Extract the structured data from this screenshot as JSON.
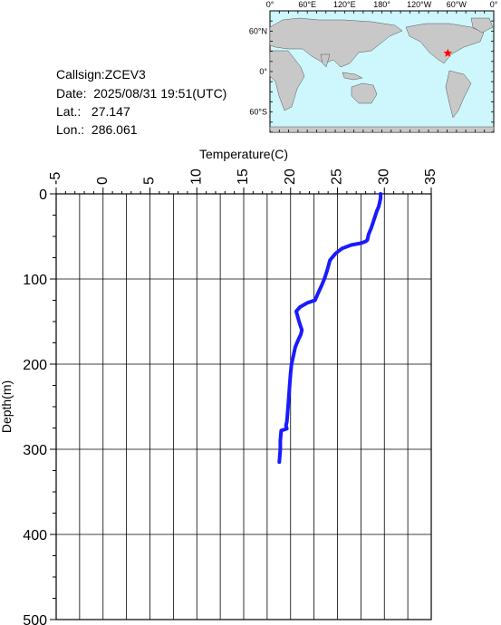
{
  "info": {
    "callsign_label": "Callsign:",
    "callsign": "ZCEV3",
    "date_label": "Date:",
    "date": "2025/08/31 19:51(UTC)",
    "lat_label": "Lat.:",
    "lat": "27.147",
    "lon_label": "Lon.:",
    "lon": "286.061"
  },
  "map": {
    "lon_labels": [
      "0°",
      "60°E",
      "120°E",
      "180°",
      "120°W",
      "60°W",
      "0°"
    ],
    "lat_labels": [
      "60°N",
      "0°",
      "60°S"
    ],
    "ocean_color": "#cdf7fd",
    "land_color": "#c8c8c8",
    "marker_color": "#ff0000",
    "marker": "star-icon"
  },
  "chart_data": {
    "type": "line",
    "xlabel": "Temperature(C)",
    "ylabel": "Depth(m)",
    "xlim": [
      -5,
      35
    ],
    "ylim": [
      0,
      500
    ],
    "x_ticks": [
      -5,
      0,
      5,
      10,
      15,
      20,
      25,
      30,
      35
    ],
    "y_ticks": [
      0,
      100,
      200,
      300,
      400,
      500
    ],
    "grid": true,
    "line_color": "#1a1aff",
    "series": [
      {
        "x": [
          29.6,
          29.6,
          29.5,
          29.4,
          29.2,
          28.9,
          28.6,
          28.3,
          28.2,
          28.0,
          27.5,
          26.5,
          25.5,
          24.8,
          24.2,
          23.9,
          23.6,
          23.3,
          23.0,
          22.8,
          22.6,
          21.8,
          21.0,
          20.6,
          20.9,
          21.2,
          21.1,
          20.8,
          20.5,
          20.3,
          20.1,
          20.0,
          19.9,
          19.8,
          19.7,
          19.6,
          19.5,
          19.6,
          19.0,
          18.9,
          18.9,
          18.8
        ],
        "y": [
          0,
          5,
          10,
          15,
          20,
          30,
          40,
          48,
          54,
          56,
          58,
          60,
          64,
          70,
          78,
          90,
          100,
          108,
          115,
          120,
          125,
          128,
          133,
          138,
          150,
          160,
          165,
          172,
          180,
          190,
          200,
          210,
          225,
          240,
          255,
          268,
          272,
          276,
          278,
          290,
          300,
          315
        ]
      }
    ]
  }
}
